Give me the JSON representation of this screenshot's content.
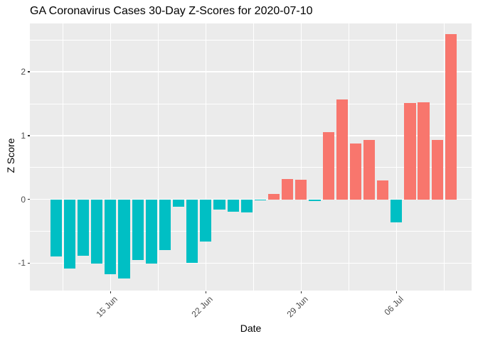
{
  "chart_data": {
    "type": "bar",
    "title": "GA Coronavirus Cases 30-Day Z-Scores for 2020-07-10",
    "xlabel": "Date",
    "ylabel": "Z Score",
    "x": [
      "2020-06-11",
      "2020-06-12",
      "2020-06-13",
      "2020-06-14",
      "2020-06-15",
      "2020-06-16",
      "2020-06-17",
      "2020-06-18",
      "2020-06-19",
      "2020-06-20",
      "2020-06-21",
      "2020-06-22",
      "2020-06-23",
      "2020-06-24",
      "2020-06-25",
      "2020-06-26",
      "2020-06-27",
      "2020-06-28",
      "2020-06-29",
      "2020-06-30",
      "2020-07-01",
      "2020-07-02",
      "2020-07-03",
      "2020-07-04",
      "2020-07-05",
      "2020-07-06",
      "2020-07-07",
      "2020-07-08",
      "2020-07-09",
      "2020-07-10"
    ],
    "values": [
      -0.9,
      -1.08,
      -0.88,
      -1.01,
      -1.17,
      -1.24,
      -0.95,
      -1.01,
      -0.79,
      -0.12,
      -1.0,
      -0.66,
      -0.16,
      -0.19,
      -0.2,
      -0.02,
      0.09,
      0.32,
      0.31,
      -0.03,
      1.05,
      1.57,
      0.88,
      0.93,
      0.3,
      -0.36,
      1.51,
      1.52,
      0.93,
      2.59
    ],
    "x_ticks": [
      {
        "date": "2020-06-15",
        "label": "15 Jun"
      },
      {
        "date": "2020-06-22",
        "label": "22 Jun"
      },
      {
        "date": "2020-06-29",
        "label": "29 Jun"
      },
      {
        "date": "2020-07-06",
        "label": "06 Jul"
      }
    ],
    "y_ticks": [
      -1,
      0,
      1,
      2
    ],
    "y_tick_labels": [
      "-1",
      "0",
      "1",
      "2"
    ],
    "y_minor_ticks": [
      -0.5,
      0.5,
      1.5,
      2.5
    ],
    "ylim": [
      -1.43,
      2.76
    ],
    "grid": true,
    "legend": "none",
    "colors": {
      "positive_bar": "#F8766D",
      "negative_bar": "#00BFC4",
      "panel_background": "#EBEBEB",
      "gridline": "#FFFFFF",
      "tick_mark": "#333333",
      "tick_label": "#4D4D4D",
      "text": "#000000"
    }
  }
}
